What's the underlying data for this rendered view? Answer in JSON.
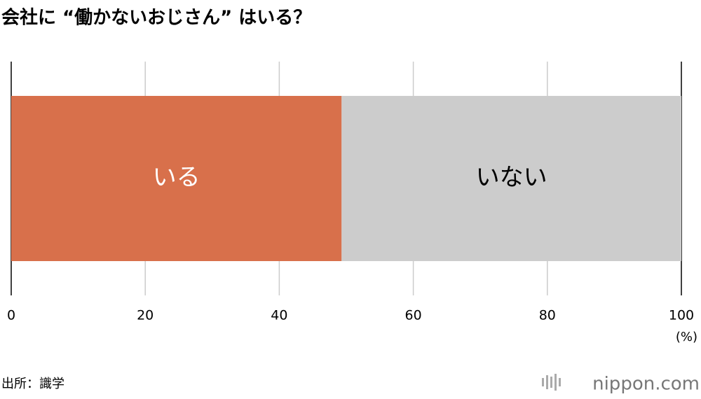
{
  "chart_data": {
    "type": "stacked_barh",
    "title": "会社に “働かないおじさん” はいる？",
    "categories": [
      null
    ],
    "series": [
      {
        "name": "いる",
        "color": "#d8704b",
        "label_color": "#ffffff",
        "values": [
          49.3
        ]
      },
      {
        "name": "いない",
        "color": "#cccccc",
        "label_color": "#000000",
        "values": [
          50.7
        ]
      }
    ],
    "xlim": [
      0,
      100
    ],
    "xticks": [
      0,
      20,
      40,
      60,
      80,
      100
    ],
    "xlabel": "(%)",
    "grid": true,
    "source": "出所：識学",
    "logo": "nippon.com"
  }
}
